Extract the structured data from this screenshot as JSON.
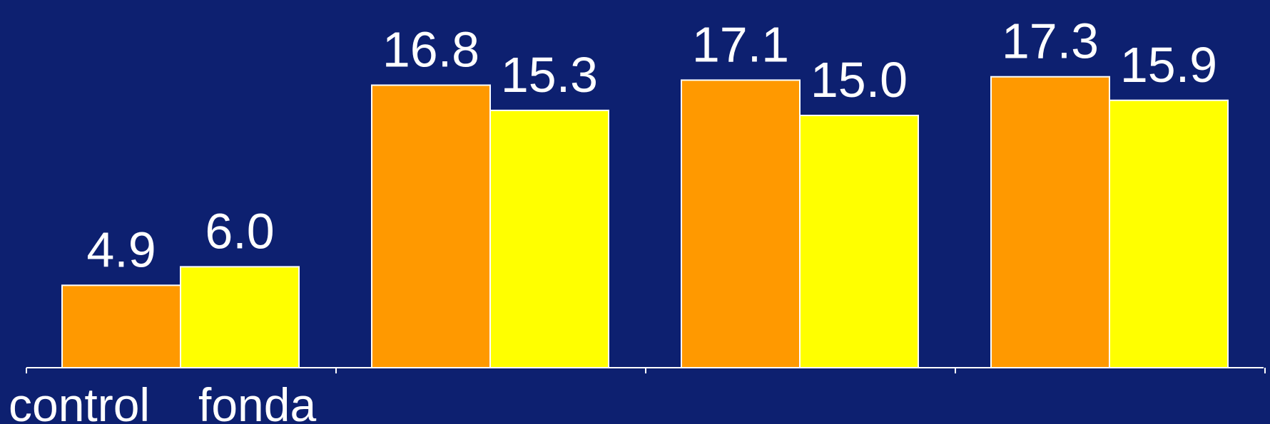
{
  "chart_data": {
    "type": "bar",
    "categories": [
      "control",
      "fonda",
      "",
      ""
    ],
    "series": [
      {
        "values": [
          4.9,
          16.8,
          17.1,
          17.3
        ]
      },
      {
        "values": [
          6.0,
          15.3,
          15.0,
          15.9
        ]
      }
    ],
    "value_labels": [
      [
        "4.9",
        "16.8",
        "17.1",
        "17.3"
      ],
      [
        "6.0",
        "15.3",
        "15.0",
        "15.9"
      ]
    ],
    "ylim": [
      0,
      17.5
    ],
    "grid": false,
    "legend": "none"
  },
  "colors": {
    "background": "#0d2070",
    "series": [
      "#ff9900",
      "#ffff00"
    ],
    "bar_outline": "#ffffff",
    "axis": "#ffffff",
    "text": "#ffffff"
  }
}
